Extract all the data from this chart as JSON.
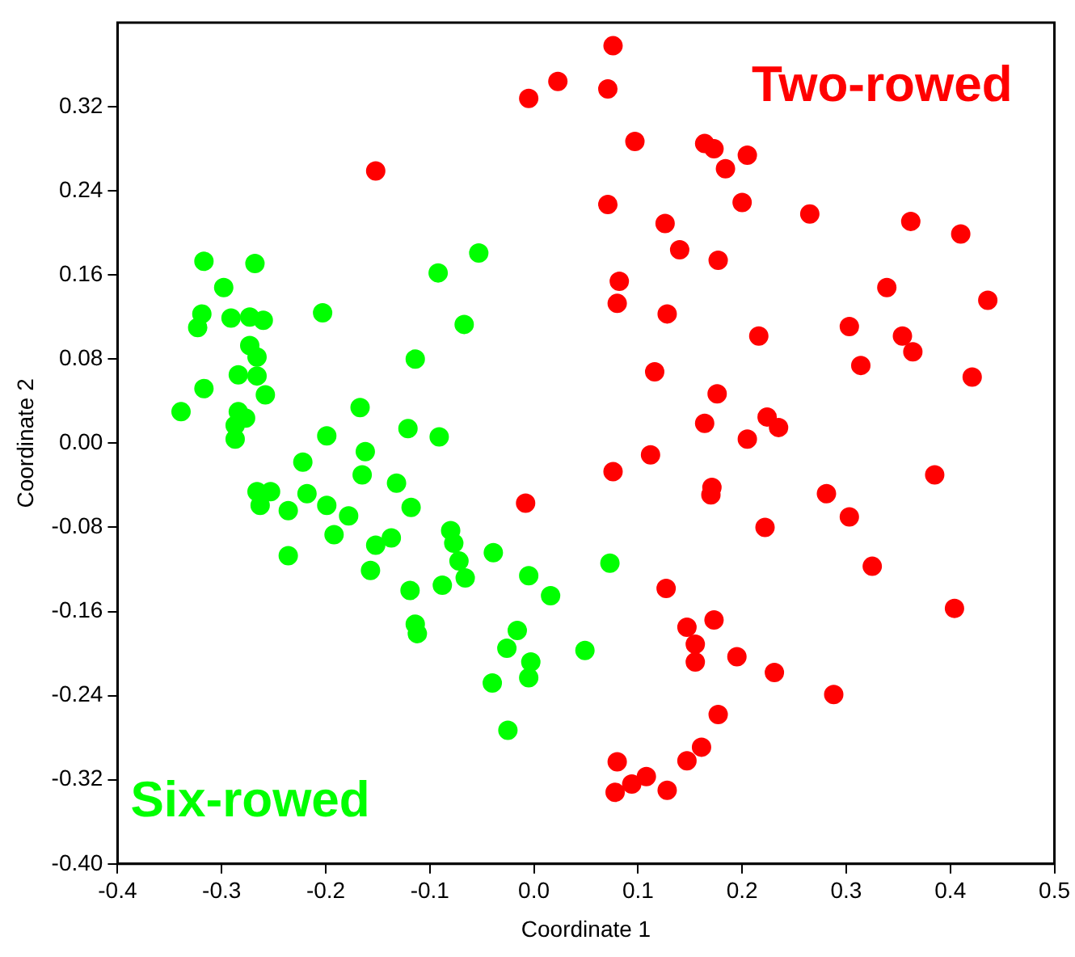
{
  "chart_data": {
    "type": "scatter",
    "xlabel": "Coordinate 1",
    "ylabel": "Coordinate 2",
    "xlim": [
      -0.4,
      0.5
    ],
    "xticks": [
      -0.4,
      -0.3,
      -0.2,
      -0.1,
      {
        "value": 0,
        "label": "0.0"
      },
      0.1,
      0.2,
      0.3,
      0.4,
      0.5
    ],
    "ylim": [
      -0.4,
      0.4
    ],
    "yticks": [
      {
        "value": -0.4,
        "label": "-0.40"
      },
      -0.32,
      -0.24,
      -0.16,
      -0.08,
      {
        "value": 0,
        "label": "0.00"
      },
      0.08,
      0.16,
      0.24,
      0.32
    ],
    "grid": false,
    "legend": false,
    "marker": "circle",
    "series": [
      {
        "name": "Two-rowed",
        "color": "#ff0000",
        "x": [
          0.076,
          0.023,
          -0.005,
          0.071,
          -0.152,
          0.097,
          0.164,
          0.173,
          0.205,
          0.184,
          0.071,
          0.2,
          0.265,
          0.126,
          0.362,
          0.41,
          0.14,
          0.177,
          0.082,
          0.08,
          0.128,
          0.339,
          0.436,
          0.303,
          0.216,
          0.354,
          0.364,
          0.314,
          0.116,
          0.421,
          0.176,
          0.164,
          0.224,
          0.235,
          0.205,
          0.112,
          0.076,
          0.385,
          0.171,
          0.17,
          0.281,
          0.303,
          -0.008,
          0.222,
          0.325,
          0.127,
          0.404,
          0.173,
          0.147,
          0.155,
          0.155,
          0.195,
          0.231,
          0.288,
          0.177,
          0.161,
          0.147,
          0.08,
          0.108,
          0.094,
          0.078,
          0.128
        ],
        "values": [
          0.378,
          0.344,
          0.328,
          0.337,
          0.259,
          0.287,
          0.285,
          0.28,
          0.274,
          0.261,
          0.227,
          0.229,
          0.218,
          0.209,
          0.211,
          0.199,
          0.184,
          0.174,
          0.154,
          0.133,
          0.123,
          0.148,
          0.136,
          0.111,
          0.102,
          0.102,
          0.087,
          0.074,
          0.068,
          0.063,
          0.047,
          0.019,
          0.025,
          0.015,
          0.004,
          -0.011,
          -0.027,
          -0.03,
          -0.042,
          -0.049,
          -0.048,
          -0.07,
          -0.057,
          -0.08,
          -0.117,
          -0.138,
          -0.157,
          -0.168,
          -0.175,
          -0.191,
          -0.208,
          -0.203,
          -0.218,
          -0.239,
          -0.258,
          -0.289,
          -0.302,
          -0.303,
          -0.317,
          -0.324,
          -0.332,
          -0.33
        ]
      },
      {
        "name": "Six-rowed",
        "color": "#00ff00",
        "x": [
          -0.317,
          -0.268,
          -0.298,
          -0.203,
          -0.053,
          -0.092,
          -0.067,
          -0.114,
          -0.319,
          -0.323,
          -0.291,
          -0.273,
          -0.26,
          -0.273,
          -0.266,
          -0.284,
          -0.266,
          -0.317,
          -0.258,
          -0.339,
          -0.284,
          -0.287,
          -0.287,
          -0.277,
          -0.167,
          -0.199,
          -0.121,
          -0.091,
          -0.162,
          -0.222,
          -0.165,
          -0.132,
          -0.266,
          -0.253,
          -0.263,
          -0.236,
          -0.218,
          -0.199,
          -0.178,
          -0.118,
          -0.192,
          -0.137,
          -0.152,
          -0.236,
          -0.08,
          -0.077,
          -0.072,
          -0.066,
          -0.088,
          -0.157,
          -0.039,
          -0.119,
          -0.114,
          -0.112,
          -0.005,
          0.016,
          0.073,
          -0.016,
          -0.026,
          0.049,
          -0.003,
          -0.005,
          -0.04,
          -0.025
        ],
        "values": [
          0.173,
          0.171,
          0.148,
          0.124,
          0.181,
          0.162,
          0.113,
          0.08,
          0.123,
          0.11,
          0.119,
          0.12,
          0.117,
          0.093,
          0.082,
          0.065,
          0.064,
          0.052,
          0.046,
          0.03,
          0.03,
          0.017,
          0.004,
          0.024,
          0.034,
          0.007,
          0.014,
          0.006,
          -0.008,
          -0.018,
          -0.03,
          -0.038,
          -0.046,
          -0.046,
          -0.059,
          -0.064,
          -0.048,
          -0.059,
          -0.069,
          -0.061,
          -0.087,
          -0.09,
          -0.097,
          -0.107,
          -0.083,
          -0.095,
          -0.112,
          -0.128,
          -0.135,
          -0.121,
          -0.104,
          -0.14,
          -0.172,
          -0.181,
          -0.126,
          -0.145,
          -0.114,
          -0.178,
          -0.195,
          -0.197,
          -0.208,
          -0.223,
          -0.228,
          -0.273
        ]
      }
    ]
  }
}
